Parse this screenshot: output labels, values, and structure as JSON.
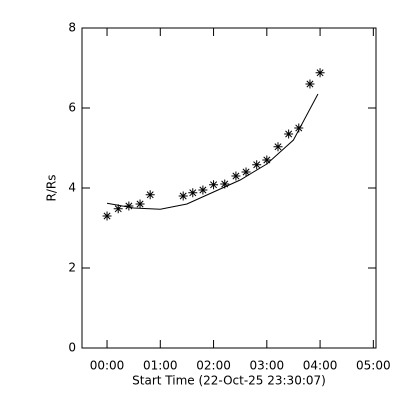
{
  "chart_data": {
    "type": "scatter",
    "xlabel": "Start Time (22-Oct-25 23:30:07)",
    "ylabel": "R/Rs",
    "xlim": [
      -0.47,
      5.05
    ],
    "xticks": [
      {
        "value": 0,
        "label": "00:00"
      },
      {
        "value": 1,
        "label": "01:00"
      },
      {
        "value": 2,
        "label": "02:00"
      },
      {
        "value": 3,
        "label": "03:00"
      },
      {
        "value": 4,
        "label": "04:00"
      },
      {
        "value": 5,
        "label": "05:00"
      }
    ],
    "ylim": [
      0,
      8
    ],
    "yticks": [
      0,
      2,
      4,
      6,
      8
    ],
    "series": [
      {
        "type": "scatter",
        "color": "#000000",
        "x": [
          0,
          0.21,
          0.41,
          0.62,
          0.81,
          1.43,
          1.61,
          1.8,
          2.0,
          2.21,
          2.42,
          2.61,
          2.81,
          3.0,
          3.21,
          3.41,
          3.6,
          3.81,
          4.0
        ],
        "values": [
          3.3,
          3.48,
          3.55,
          3.6,
          3.83,
          3.8,
          3.88,
          3.95,
          4.08,
          4.1,
          4.3,
          4.4,
          4.58,
          4.7,
          5.03,
          5.35,
          5.5,
          6.6,
          6.88
        ]
      },
      {
        "type": "line",
        "color": "#000000",
        "x": [
          0,
          0.5,
          1,
          1.5,
          2,
          2.5,
          3,
          3.5,
          3.96
        ],
        "values": [
          3.62,
          3.5,
          3.47,
          3.6,
          3.9,
          4.2,
          4.6,
          5.2,
          6.35
        ]
      }
    ]
  }
}
